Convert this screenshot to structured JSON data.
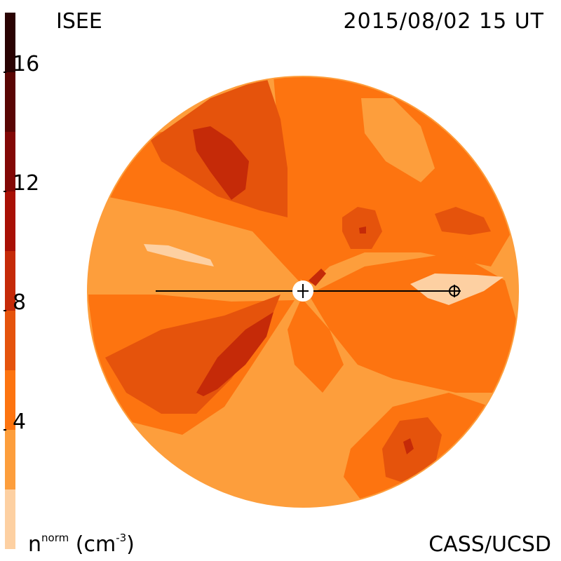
{
  "header": {
    "org": "ISEE",
    "datetime": "2015/08/02 15 UT"
  },
  "footer": {
    "credit": "CASS/UCSD",
    "unit_base": "n",
    "unit_sup": "norm",
    "unit_tail": " (cm",
    "unit_exp": "-3",
    "unit_close": ")"
  },
  "colorbar": {
    "ticks": [
      "4",
      "8",
      "12",
      "16"
    ],
    "bands": [
      {
        "from": 0,
        "to": 2,
        "color": "#fdd0a2"
      },
      {
        "from": 2,
        "to": 4,
        "color": "#fd9e3c"
      },
      {
        "from": 4,
        "to": 6,
        "color": "#fd7410"
      },
      {
        "from": 6,
        "to": 8,
        "color": "#e5530c"
      },
      {
        "from": 8,
        "to": 10,
        "color": "#c52a08"
      },
      {
        "from": 10,
        "to": 12,
        "color": "#a81005"
      },
      {
        "from": 12,
        "to": 14,
        "color": "#820806"
      },
      {
        "from": 14,
        "to": 16,
        "color": "#5a0604"
      },
      {
        "from": 16,
        "to": 18,
        "color": "#2a0303"
      }
    ]
  },
  "map": {
    "type": "density-disk",
    "earth_marker": "plus-in-circle",
    "sun_marker": "plus"
  }
}
